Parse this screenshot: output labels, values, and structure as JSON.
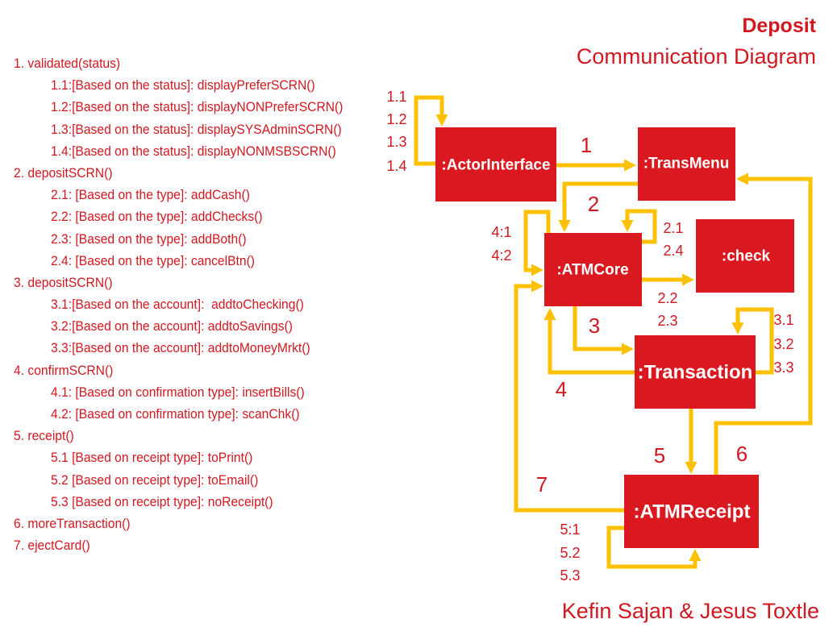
{
  "title": {
    "name": "Deposit",
    "subtitle": "Communication Diagram"
  },
  "colors": {
    "text_red": "#d01820",
    "box_red": "#d9191f",
    "box_text": "#ffffff",
    "arrow_yellow": "#ffc000",
    "background": "#ffffff"
  },
  "messages": [
    {
      "call": "1. validated(status)",
      "conditions": [
        "1.1:[Based on the status]: displayPreferSCRN()",
        "1.2:[Based on the status]: displayNONPreferSCRN()",
        "1.3:[Based on the status]: displaySYSAdminSCRN()",
        "1.4:[Based on the status]: displayNONMSBSCRN()"
      ]
    },
    {
      "call": "2. depositSCRN()",
      "conditions": [
        "2.1: [Based on the type]: addCash()",
        "2.2: [Based on the type]: addChecks()",
        "2.3: [Based on the type]: addBoth()",
        "2.4: [Based on the type]: cancelBtn()"
      ]
    },
    {
      "call": "3. depositSCRN()",
      "conditions": [
        "3.1:[Based on the account]:  addtoChecking()",
        "3.2:[Based on the account]: addtoSavings()",
        "3.3:[Based on the account]: addtoMoneyMrkt()"
      ]
    },
    {
      "call": "4. confirmSCRN()",
      "conditions": [
        "4.1: [Based on confirmation type]: insertBills()",
        "4.2: [Based on confirmation type]: scanChk()"
      ]
    },
    {
      "call": "5. receipt()",
      "conditions": [
        "5.1 [Based on receipt type]: toPrint()",
        "5.2 [Based on receipt type]: toEmail()",
        "5.3 [Based on receipt type]: noReceipt()"
      ]
    },
    {
      "call": "6. moreTransaction()",
      "conditions": []
    },
    {
      "call": "7. ejectCard()",
      "conditions": []
    }
  ],
  "diagram": {
    "objects": {
      "actor_interface": ":ActorInterface",
      "trans_menu": ":TransMenu",
      "atm_core": ":ATMCore",
      "check": ":check",
      "transaction": ":Transaction",
      "atm_receipt": ":ATMReceipt"
    },
    "links": {
      "actor_self": [
        "1.1",
        "1.2",
        "1.3",
        "1.4"
      ],
      "actor_to_transmenu": [
        "1"
      ],
      "transmenu_to_atmcore": [
        "2"
      ],
      "atmcore_self_right": [
        "2.1",
        "2.4"
      ],
      "atmcore_to_check": [
        "2.2",
        "2.3"
      ],
      "atmcore_self_left": [
        "4:1",
        "4:2"
      ],
      "atmcore_to_transaction": [
        "3"
      ],
      "transaction_to_atmcore": [
        "4"
      ],
      "transaction_self": [
        "3.1",
        "3.2",
        "3.3"
      ],
      "transaction_to_atmreceipt": [
        "5"
      ],
      "atmreceipt_to_transmenu": [
        "6"
      ],
      "atmreceipt_to_atmcore": [
        "7"
      ],
      "atmreceipt_self": [
        "5:1",
        "5.2",
        "5.3"
      ]
    }
  },
  "authors": "Kefin Sajan & Jesus Toxtle"
}
